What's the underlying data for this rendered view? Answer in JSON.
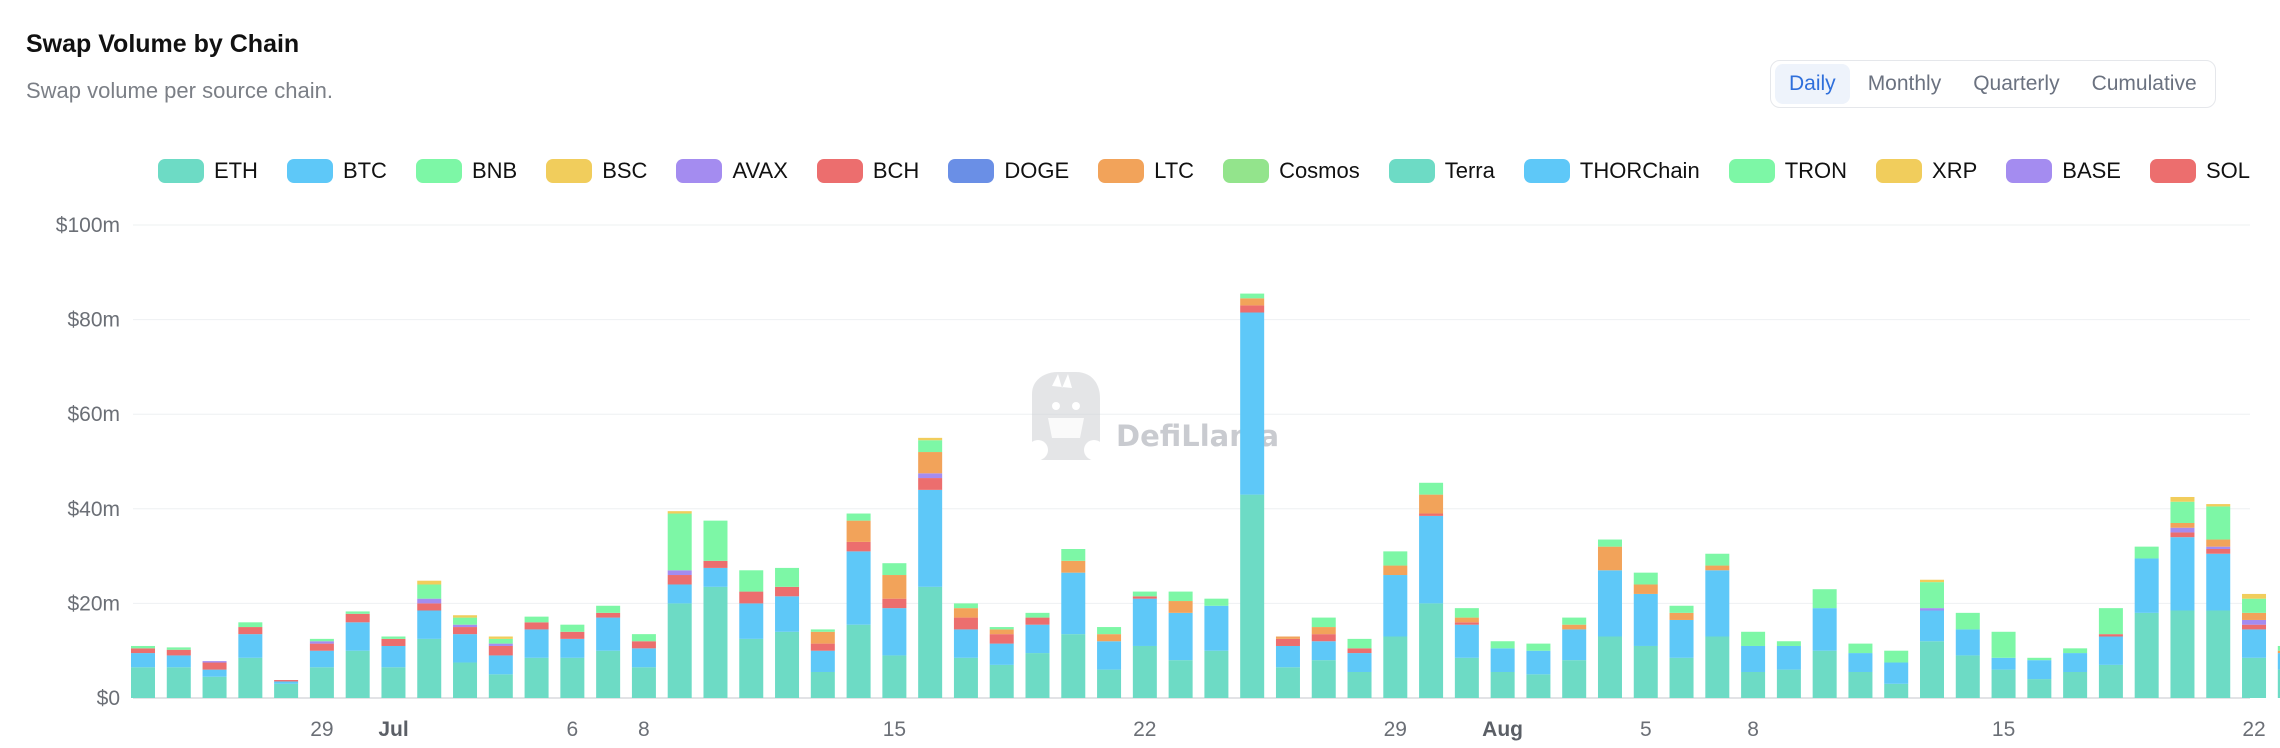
{
  "header": {
    "title": "Swap Volume by Chain",
    "subtitle": "Swap volume per source chain."
  },
  "toggle": {
    "options": [
      "Daily",
      "Monthly",
      "Quarterly",
      "Cumulative"
    ],
    "selected": "Daily"
  },
  "watermark": {
    "text": "DefiLlama"
  },
  "chart_data": {
    "type": "bar",
    "stacked": true,
    "ylim": [
      0,
      100
    ],
    "yticks": [
      0,
      20,
      40,
      60,
      80,
      100
    ],
    "ytick_labels": [
      "$0",
      "$20m",
      "$40m",
      "$60m",
      "$80m",
      "$100m"
    ],
    "y_unit": "$m",
    "x_ticks": [
      {
        "label": "29",
        "date": "Jun 29",
        "bold": false
      },
      {
        "label": "Jul",
        "date": "Jul 1",
        "bold": true
      },
      {
        "label": "6",
        "date": "Jul 6",
        "bold": false
      },
      {
        "label": "8",
        "date": "Jul 8",
        "bold": false
      },
      {
        "label": "15",
        "date": "Jul 15",
        "bold": false
      },
      {
        "label": "22",
        "date": "Jul 22",
        "bold": false
      },
      {
        "label": "29",
        "date": "Jul 29",
        "bold": false
      },
      {
        "label": "Aug",
        "date": "Aug 1",
        "bold": true
      },
      {
        "label": "5",
        "date": "Aug 5",
        "bold": false
      },
      {
        "label": "8",
        "date": "Aug 8",
        "bold": false
      },
      {
        "label": "15",
        "date": "Aug 15",
        "bold": false
      },
      {
        "label": "22",
        "date": "Aug 22",
        "bold": false
      }
    ],
    "legend_position": "top-right",
    "series": [
      {
        "name": "ETH",
        "color": "#6ddbc5"
      },
      {
        "name": "BTC",
        "color": "#5ec8f8"
      },
      {
        "name": "BNB",
        "color": "#7df7a6"
      },
      {
        "name": "BSC",
        "color": "#f1cd5c"
      },
      {
        "name": "AVAX",
        "color": "#a48cf0"
      },
      {
        "name": "BCH",
        "color": "#ec6e6e"
      },
      {
        "name": "DOGE",
        "color": "#6a8fe6"
      },
      {
        "name": "LTC",
        "color": "#f2a35a"
      },
      {
        "name": "Cosmos",
        "color": "#93e48c"
      },
      {
        "name": "Terra",
        "color": "#6ddbc5"
      },
      {
        "name": "THORChain",
        "color": "#5ec8f8"
      },
      {
        "name": "TRON",
        "color": "#7df7a6"
      },
      {
        "name": "XRP",
        "color": "#f1cd5c"
      },
      {
        "name": "BASE",
        "color": "#a48cf0"
      },
      {
        "name": "SOL",
        "color": "#ec6e6e"
      }
    ],
    "bars": [
      {
        "x": "Jun 24",
        "values": {
          "ETH": 6.5,
          "BTC": 3,
          "BCH": 1,
          "BNB": 0.5
        }
      },
      {
        "x": "Jun 25",
        "values": {
          "ETH": 6.5,
          "BTC": 2.5,
          "BCH": 1.2,
          "BNB": 0.5
        }
      },
      {
        "x": "Jun 26",
        "values": {
          "ETH": 4.5,
          "BTC": 1.5,
          "BCH": 1.5,
          "AVAX": 0.3
        }
      },
      {
        "x": "Jun 27",
        "values": {
          "ETH": 8.5,
          "BTC": 5,
          "BCH": 1.5,
          "BNB": 1
        }
      },
      {
        "x": "Jun 28",
        "values": {
          "ETH": 3,
          "BTC": 0.5,
          "BCH": 0.3
        }
      },
      {
        "x": "Jun 29",
        "values": {
          "ETH": 6.5,
          "BTC": 3.5,
          "BCH": 1.5,
          "AVAX": 0.5,
          "BNB": 0.5
        }
      },
      {
        "x": "Jun 30",
        "values": {
          "ETH": 10,
          "BTC": 6,
          "BCH": 1.8,
          "BNB": 0.5
        }
      },
      {
        "x": "Jul 1",
        "values": {
          "ETH": 6.5,
          "BTC": 4.5,
          "BCH": 1.5,
          "BNB": 0.5
        }
      },
      {
        "x": "Jul 2",
        "values": {
          "ETH": 12.5,
          "BTC": 6,
          "BCH": 1.5,
          "AVAX": 1,
          "BNB": 3,
          "BSC": 0.8
        }
      },
      {
        "x": "Jul 3",
        "values": {
          "ETH": 7.5,
          "BTC": 6,
          "BCH": 1.5,
          "AVAX": 0.5,
          "BNB": 1.5,
          "BSC": 0.5
        }
      },
      {
        "x": "Jul 4",
        "values": {
          "ETH": 5,
          "BTC": 4,
          "BCH": 2,
          "AVAX": 0.5,
          "BNB": 1,
          "BSC": 0.5
        }
      },
      {
        "x": "Jul 5",
        "values": {
          "ETH": 8.5,
          "BTC": 6,
          "BCH": 1.5,
          "BNB": 1.2
        }
      },
      {
        "x": "Jul 6",
        "values": {
          "ETH": 8.5,
          "BTC": 4,
          "BCH": 1.5,
          "BNB": 1.5
        }
      },
      {
        "x": "Jul 7",
        "values": {
          "ETH": 10,
          "BTC": 7,
          "BCH": 1,
          "BNB": 1.5
        }
      },
      {
        "x": "Jul 8",
        "values": {
          "ETH": 6.5,
          "BTC": 4,
          "BCH": 1.5,
          "BNB": 1.5
        }
      },
      {
        "x": "Jul 9",
        "values": {
          "ETH": 20,
          "BTC": 4,
          "BCH": 2,
          "AVAX": 1,
          "BNB": 12,
          "BSC": 0.5
        }
      },
      {
        "x": "Jul 10",
        "values": {
          "ETH": 23.5,
          "BTC": 4,
          "BCH": 1.5,
          "BNB": 8.5
        }
      },
      {
        "x": "Jul 11",
        "values": {
          "ETH": 12.5,
          "BTC": 7.5,
          "BCH": 2.5,
          "BNB": 4.5
        }
      },
      {
        "x": "Jul 12",
        "values": {
          "ETH": 14,
          "BTC": 7.5,
          "BCH": 2,
          "BNB": 4
        }
      },
      {
        "x": "Jul 13",
        "values": {
          "ETH": 5.5,
          "BTC": 4.5,
          "BCH": 1.5,
          "LTC": 2.5,
          "BNB": 0.5
        }
      },
      {
        "x": "Jul 14",
        "values": {
          "ETH": 15.5,
          "BTC": 15.5,
          "BCH": 2,
          "LTC": 4.5,
          "BNB": 1.5
        }
      },
      {
        "x": "Jul 15",
        "values": {
          "ETH": 9,
          "BTC": 10,
          "BCH": 2,
          "LTC": 5,
          "BNB": 2.5
        }
      },
      {
        "x": "Jul 16",
        "values": {
          "ETH": 23.5,
          "BTC": 20.5,
          "BCH": 2.5,
          "AVAX": 1,
          "LTC": 4.5,
          "BNB": 2.5,
          "BSC": 0.5
        }
      },
      {
        "x": "Jul 17",
        "values": {
          "ETH": 8.5,
          "BTC": 6,
          "BCH": 2.5,
          "LTC": 2,
          "BNB": 1
        }
      },
      {
        "x": "Jul 18",
        "values": {
          "ETH": 7,
          "BTC": 4.5,
          "BCH": 2,
          "LTC": 1,
          "BNB": 0.5
        }
      },
      {
        "x": "Jul 19",
        "values": {
          "ETH": 9.5,
          "BTC": 6,
          "BCH": 1.5,
          "BNB": 1
        }
      },
      {
        "x": "Jul 20",
        "values": {
          "ETH": 13.5,
          "BTC": 13,
          "LTC": 2.5,
          "BNB": 2.5
        }
      },
      {
        "x": "Jul 21",
        "values": {
          "ETH": 6,
          "BTC": 6,
          "LTC": 1.5,
          "BNB": 1.5
        }
      },
      {
        "x": "Jul 22",
        "values": {
          "ETH": 11,
          "BTC": 10,
          "BCH": 0.5,
          "BNB": 1
        }
      },
      {
        "x": "Jul 23",
        "values": {
          "ETH": 8,
          "BTC": 10,
          "LTC": 2.5,
          "BNB": 2
        }
      },
      {
        "x": "Jul 24",
        "values": {
          "ETH": 10,
          "BTC": 9.5,
          "BNB": 1.5
        }
      },
      {
        "x": "Jul 25",
        "values": {
          "ETH": 43,
          "BTC": 38.5,
          "BCH": 1.5,
          "LTC": 1.5,
          "BNB": 1
        }
      },
      {
        "x": "Jul 26",
        "values": {
          "ETH": 6.5,
          "BTC": 4.5,
          "BCH": 1.5,
          "LTC": 0.5
        }
      },
      {
        "x": "Jul 27",
        "values": {
          "ETH": 8,
          "BTC": 4,
          "BCH": 1.5,
          "LTC": 1.5,
          "BNB": 2
        }
      },
      {
        "x": "Jul 28",
        "values": {
          "ETH": 5.5,
          "BTC": 4,
          "BCH": 1,
          "BNB": 2
        }
      },
      {
        "x": "Jul 29",
        "values": {
          "ETH": 13,
          "BTC": 13,
          "LTC": 2,
          "BNB": 3
        }
      },
      {
        "x": "Jul 30",
        "values": {
          "ETH": 20,
          "BTC": 18.5,
          "BCH": 0.5,
          "LTC": 4,
          "BNB": 2.5
        }
      },
      {
        "x": "Jul 31",
        "values": {
          "ETH": 8.5,
          "BTC": 7,
          "BCH": 0.5,
          "LTC": 1,
          "BNB": 2
        }
      },
      {
        "x": "Aug 1",
        "values": {
          "ETH": 5.5,
          "BTC": 5,
          "BNB": 1.5
        }
      },
      {
        "x": "Aug 2",
        "values": {
          "ETH": 5,
          "BTC": 5,
          "BNB": 1.5
        }
      },
      {
        "x": "Aug 3",
        "values": {
          "ETH": 8,
          "BTC": 6.5,
          "LTC": 1,
          "BNB": 1.5
        }
      },
      {
        "x": "Aug 4",
        "values": {
          "ETH": 13,
          "BTC": 14,
          "LTC": 5,
          "BNB": 1.5
        }
      },
      {
        "x": "Aug 5",
        "values": {
          "ETH": 11,
          "BTC": 11,
          "LTC": 2,
          "BNB": 2.5
        }
      },
      {
        "x": "Aug 6",
        "values": {
          "ETH": 8.5,
          "BTC": 8,
          "LTC": 1.5,
          "BNB": 1.5
        }
      },
      {
        "x": "Aug 7",
        "values": {
          "ETH": 13,
          "BTC": 14,
          "LTC": 1,
          "BNB": 2.5
        }
      },
      {
        "x": "Aug 8",
        "values": {
          "ETH": 5.5,
          "BTC": 5.5,
          "BNB": 3
        }
      },
      {
        "x": "Aug 9",
        "values": {
          "ETH": 6,
          "BTC": 5,
          "BNB": 1
        }
      },
      {
        "x": "Aug 10",
        "values": {
          "ETH": 10,
          "BTC": 9,
          "BNB": 4
        }
      },
      {
        "x": "Aug 11",
        "values": {
          "ETH": 5.5,
          "BTC": 4,
          "BNB": 2
        }
      },
      {
        "x": "Aug 12",
        "values": {
          "ETH": 3,
          "BTC": 4.5,
          "BNB": 2.5
        }
      },
      {
        "x": "Aug 13",
        "values": {
          "ETH": 12,
          "BTC": 6.5,
          "AVAX": 0.5,
          "BNB": 5.5,
          "BSC": 0.5
        }
      },
      {
        "x": "Aug 14",
        "values": {
          "ETH": 9,
          "BTC": 5.5,
          "BNB": 3.5
        }
      },
      {
        "x": "Aug 15",
        "values": {
          "ETH": 6,
          "BTC": 2.5,
          "BNB": 5.5
        }
      },
      {
        "x": "Aug 16",
        "values": {
          "ETH": 4,
          "BTC": 4,
          "BNB": 0.5
        }
      },
      {
        "x": "Aug 17",
        "values": {
          "ETH": 5.5,
          "BTC": 4,
          "BNB": 1
        }
      },
      {
        "x": "Aug 18",
        "values": {
          "ETH": 7,
          "BTC": 6,
          "BCH": 0.5,
          "BNB": 5.5
        }
      },
      {
        "x": "Aug 19",
        "values": {
          "ETH": 18,
          "BTC": 11.5,
          "BNB": 2.5
        }
      },
      {
        "x": "Aug 20",
        "values": {
          "ETH": 18.5,
          "BTC": 15.5,
          "AVAX": 1,
          "BCH": 1,
          "LTC": 1,
          "BNB": 4.5,
          "BSC": 1
        }
      },
      {
        "x": "Aug 21",
        "values": {
          "ETH": 18.5,
          "BTC": 12,
          "AVAX": 0.5,
          "BCH": 1,
          "LTC": 1.5,
          "BNB": 7,
          "BSC": 0.5
        }
      },
      {
        "x": "Aug 22",
        "values": {
          "ETH": 8.5,
          "BTC": 6,
          "AVAX": 1,
          "BCH": 1,
          "LTC": 1.5,
          "BNB": 3,
          "BSC": 1
        }
      },
      {
        "x": "Aug 23",
        "values": {
          "ETH": 6,
          "BTC": 3.5,
          "LTC": 0.5,
          "BNB": 1
        }
      }
    ]
  }
}
